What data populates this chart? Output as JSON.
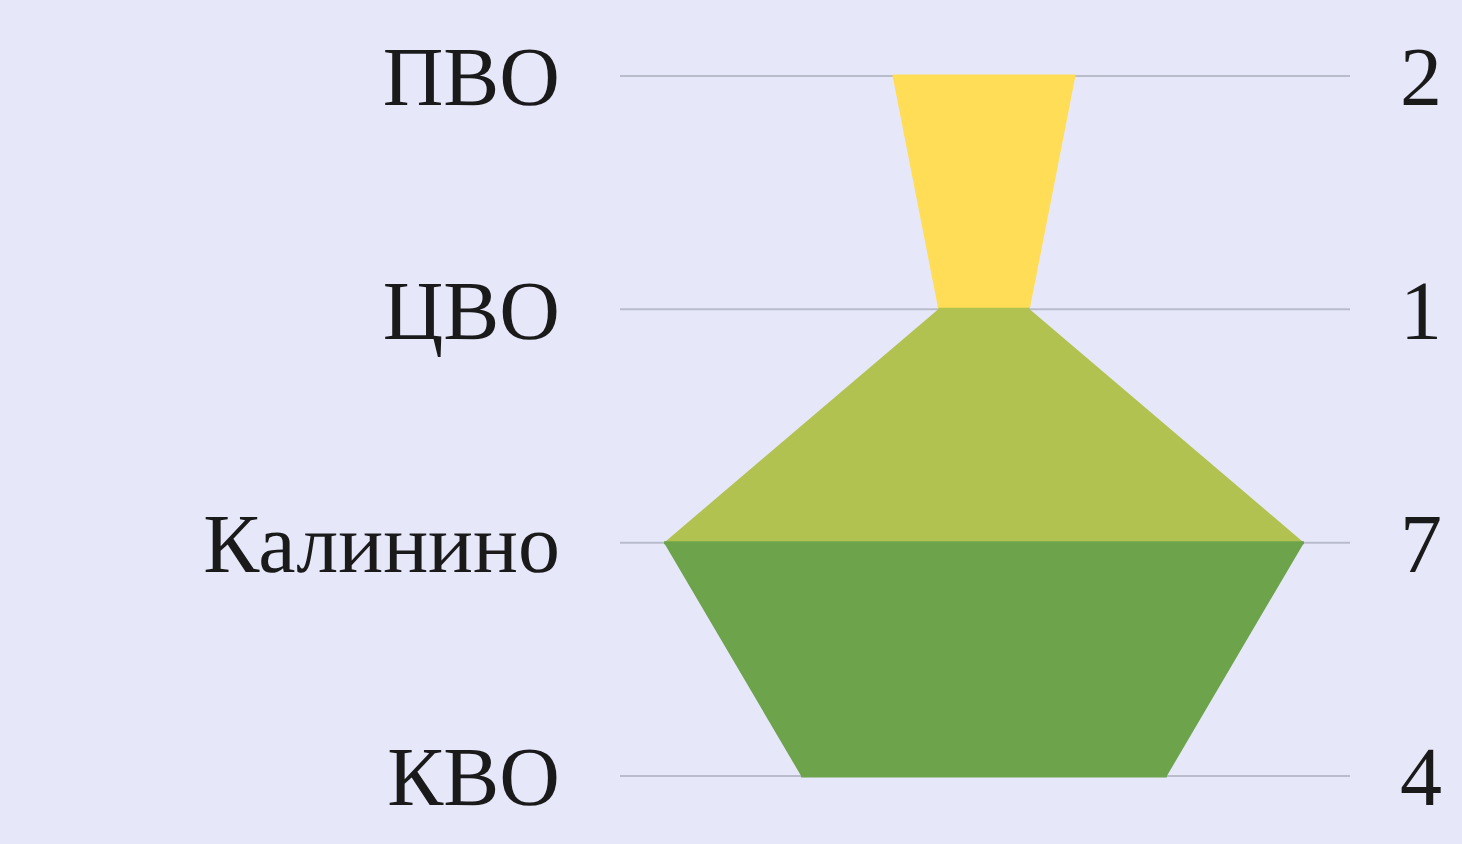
{
  "chart_data": {
    "type": "other",
    "categories": [
      "ПВО",
      "ЦВО",
      "Калинино",
      "КВО"
    ],
    "values": [
      2,
      1,
      7,
      4
    ],
    "colors": [
      "#ffdd57",
      "#b2c250",
      "#6ca34b",
      "#6ca34b"
    ],
    "data_labels": true
  }
}
